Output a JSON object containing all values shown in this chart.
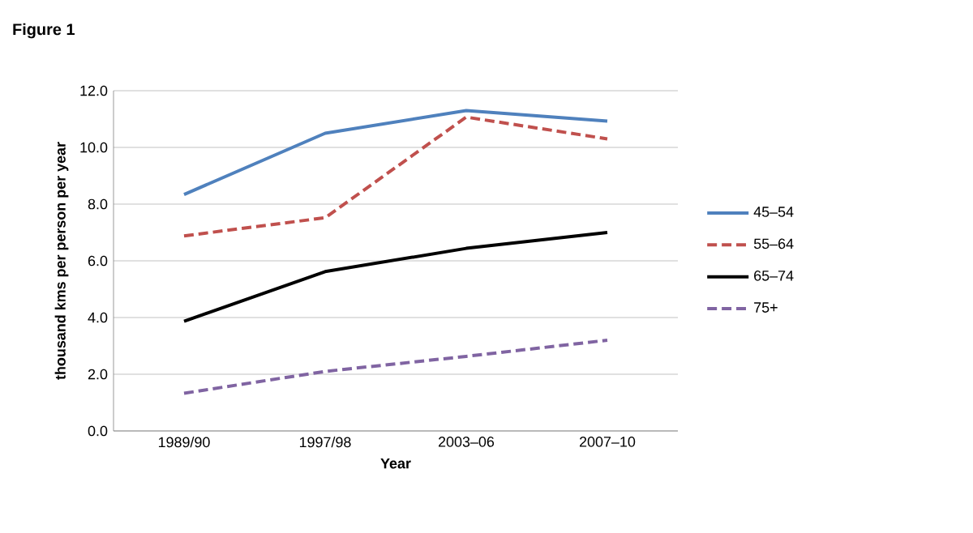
{
  "chart_data": {
    "type": "line",
    "title": "Figure 1",
    "xlabel": "Year",
    "ylabel": "thousand kms per person per year",
    "categories": [
      "1989/90",
      "1997/98",
      "2003–06",
      "2007–10"
    ],
    "series": [
      {
        "name": "45–54",
        "color": "#4f81bd",
        "values": [
          8.34,
          10.5,
          11.3,
          10.93
        ],
        "line_style": "solid"
      },
      {
        "name": "55–64",
        "color": "#c0504d",
        "values": [
          6.88,
          7.52,
          11.07,
          10.3
        ],
        "line_style": "dashed"
      },
      {
        "name": "65–74",
        "color": "#000000",
        "values": [
          3.87,
          5.62,
          6.44,
          7.0
        ],
        "line_style": "solid"
      },
      {
        "name": "75+",
        "color": "#8064a2",
        "values": [
          1.33,
          2.1,
          2.63,
          3.2
        ],
        "line_style": "dashed"
      }
    ],
    "ylim": [
      0,
      12
    ],
    "yticks": [
      {
        "value": 0,
        "label": "0.0"
      },
      {
        "value": 2,
        "label": "2.0"
      },
      {
        "value": 4,
        "label": "4.0"
      },
      {
        "value": 6,
        "label": "6.0"
      },
      {
        "value": 8,
        "label": "8.0"
      },
      {
        "value": 10,
        "label": "10.0"
      },
      {
        "value": 12,
        "label": "12.0"
      }
    ],
    "grid": "y",
    "legend": "right",
    "marker": "none"
  }
}
